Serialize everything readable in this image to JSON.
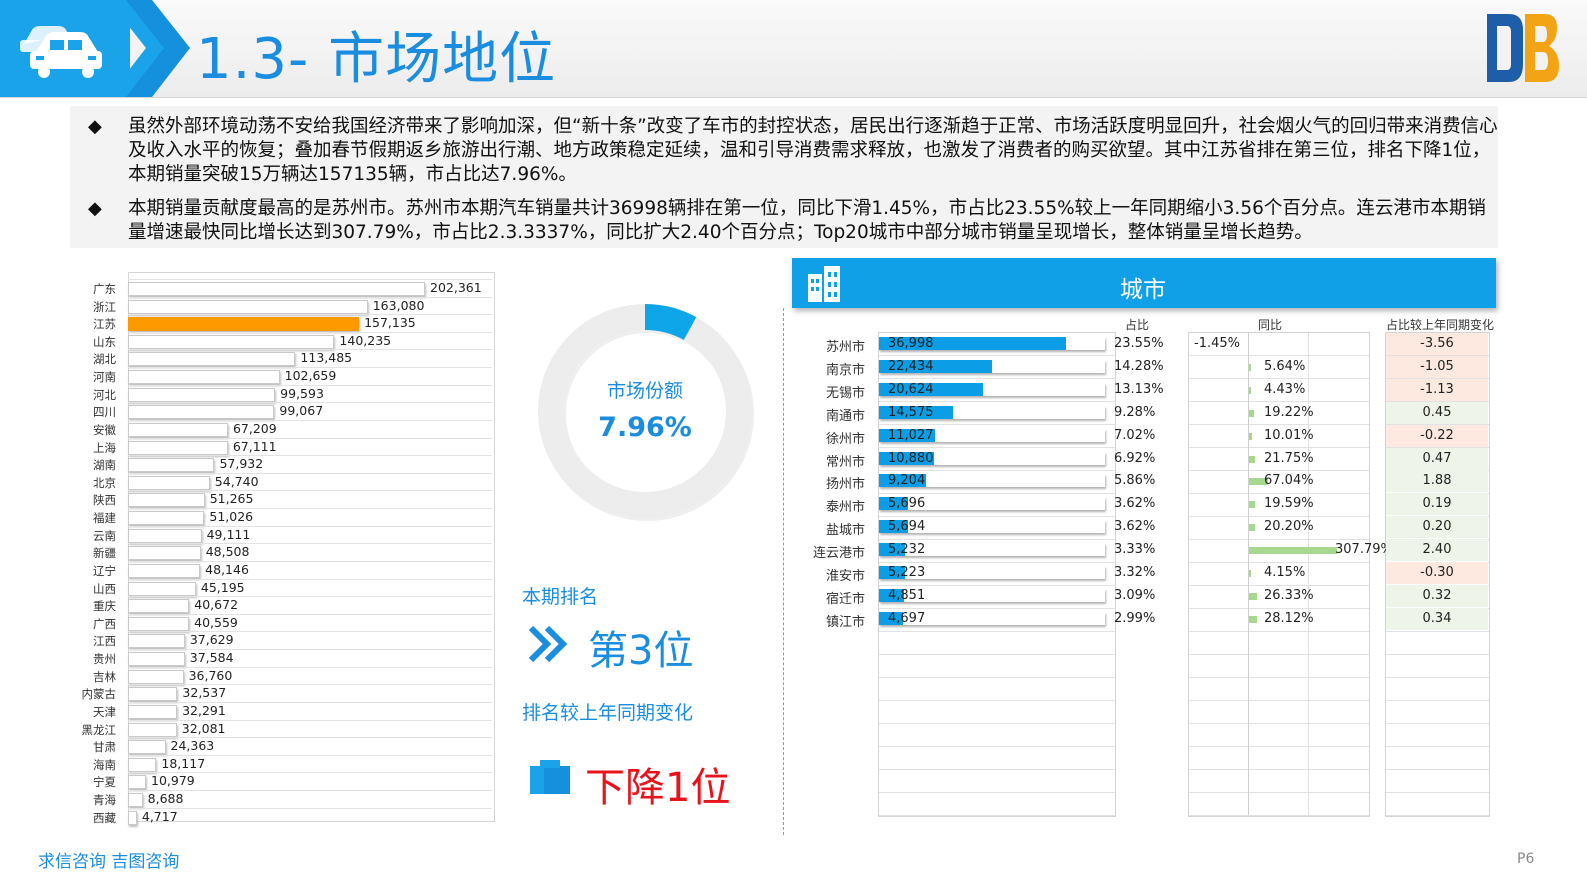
{
  "header": {
    "title": "1.3- 市场地位"
  },
  "bullets": [
    {
      "text": "虽然外部环境动荡不安给我国经济带来了影响加深，但“新十条”改变了车市的封控状态，居民出行逐渐趋于正常、市场活跃度明显回升，社会烟火气的回归带来消费信心及收入水平的恢复；叠加春节假期返乡旅游出行潮、地方政策稳定延续，温和引导消费需求释放，也激发了消费者的购买欲望。其中江苏省排在第三位，排名下降1位，本期销量突破15万辆达157135辆，市占比达7.96%。"
    },
    {
      "text": "本期销量贡献度最高的是苏州市。苏州市本期汽车销量共计36998辆排在第一位，同比下滑1.45%，市占比23.55%较上一年同期缩小3.56个百分点。连云港市本期销量增速最快同比增长达到307.79%，市占比2.3.3337%，同比扩大2.40个百分点；Top20城市中部分城市销量呈现增长，整体销量呈增长趋势。"
    }
  ],
  "chart_data": [
    {
      "type": "bar",
      "orientation": "horizontal",
      "highlight_category": "江苏",
      "highlight_color": "#ff9900",
      "categories": [
        "广东",
        "浙江",
        "江苏",
        "山东",
        "湖北",
        "河南",
        "河北",
        "四川",
        "安徽",
        "上海",
        "湖南",
        "北京",
        "陕西",
        "福建",
        "云南",
        "新疆",
        "辽宁",
        "山西",
        "重庆",
        "广西",
        "江西",
        "贵州",
        "吉林",
        "内蒙古",
        "天津",
        "黑龙江",
        "甘肃",
        "海南",
        "宁夏",
        "青海",
        "西藏"
      ],
      "values": [
        202361,
        163080,
        157135,
        140235,
        113485,
        102659,
        99593,
        99067,
        67209,
        67111,
        57932,
        54740,
        51265,
        51026,
        49111,
        48508,
        48146,
        45195,
        40672,
        40559,
        37629,
        37584,
        36760,
        32537,
        32291,
        32081,
        24363,
        18117,
        10979,
        8688,
        4717
      ],
      "value_labels": [
        "202,361",
        "163,080",
        "157,135",
        "140,235",
        "113,485",
        "102,659",
        "99,593",
        "99,067",
        "67,209",
        "67,111",
        "57,932",
        "54,740",
        "51,265",
        "51,026",
        "49,111",
        "48,508",
        "48,146",
        "45,195",
        "40,672",
        "40,559",
        "37,629",
        "37,584",
        "36,760",
        "32,537",
        "32,291",
        "32,081",
        "24,363",
        "18,117",
        "10,979",
        "8,688",
        "4,717"
      ]
    },
    {
      "type": "pie",
      "style": "donut",
      "slices": [
        {
          "value": 7.96,
          "color": "#0ea5e9"
        },
        {
          "value": 92.04,
          "color": "#ededed"
        }
      ]
    },
    {
      "type": "table",
      "columns": [
        "占比",
        "同比",
        "占比较上年同期变化"
      ],
      "rows": [
        {
          "city": "苏州市",
          "sales": 36998,
          "sales_label": "36,998",
          "share": "23.55%",
          "yoy": -1.45,
          "yoy_label": "-1.45%",
          "change": -3.56,
          "change_label": "-3.56"
        },
        {
          "city": "南京市",
          "sales": 22434,
          "sales_label": "22,434",
          "share": "14.28%",
          "yoy": 5.64,
          "yoy_label": "5.64%",
          "change": -1.05,
          "change_label": "-1.05"
        },
        {
          "city": "无锡市",
          "sales": 20624,
          "sales_label": "20,624",
          "share": "13.13%",
          "yoy": 4.43,
          "yoy_label": "4.43%",
          "change": -1.13,
          "change_label": "-1.13"
        },
        {
          "city": "南通市",
          "sales": 14575,
          "sales_label": "14,575",
          "share": "9.28%",
          "yoy": 19.22,
          "yoy_label": "19.22%",
          "change": 0.45,
          "change_label": "0.45"
        },
        {
          "city": "徐州市",
          "sales": 11027,
          "sales_label": "11,027",
          "share": "7.02%",
          "yoy": 10.01,
          "yoy_label": "10.01%",
          "change": -0.22,
          "change_label": "-0.22"
        },
        {
          "city": "常州市",
          "sales": 10880,
          "sales_label": "10,880",
          "share": "6.92%",
          "yoy": 21.75,
          "yoy_label": "21.75%",
          "change": 0.47,
          "change_label": "0.47"
        },
        {
          "city": "扬州市",
          "sales": 9204,
          "sales_label": "9,204",
          "share": "5.86%",
          "yoy": 67.04,
          "yoy_label": "67.04%",
          "change": 1.88,
          "change_label": "1.88"
        },
        {
          "city": "泰州市",
          "sales": 5696,
          "sales_label": "5,696",
          "share": "3.62%",
          "yoy": 19.59,
          "yoy_label": "19.59%",
          "change": 0.19,
          "change_label": "0.19"
        },
        {
          "city": "盐城市",
          "sales": 5694,
          "sales_label": "5,694",
          "share": "3.62%",
          "yoy": 20.2,
          "yoy_label": "20.20%",
          "change": 0.2,
          "change_label": "0.20"
        },
        {
          "city": "连云港市",
          "sales": 5232,
          "sales_label": "5,232",
          "share": "3.33%",
          "yoy": 307.79,
          "yoy_label": "307.79%",
          "change": 2.4,
          "change_label": "2.40"
        },
        {
          "city": "淮安市",
          "sales": 5223,
          "sales_label": "5,223",
          "share": "3.32%",
          "yoy": 4.15,
          "yoy_label": "4.15%",
          "change": -0.3,
          "change_label": "-0.30"
        },
        {
          "city": "宿迁市",
          "sales": 4851,
          "sales_label": "4,851",
          "share": "3.09%",
          "yoy": 26.33,
          "yoy_label": "26.33%",
          "change": 0.32,
          "change_label": "0.32"
        },
        {
          "city": "镇江市",
          "sales": 4697,
          "sales_label": "4,697",
          "share": "2.99%",
          "yoy": 28.12,
          "yoy_label": "28.12%",
          "change": 0.34,
          "change_label": "0.34"
        }
      ],
      "colors": {
        "bar": "#0b9ee6",
        "yoy_bar": "#a8d88e",
        "change_negative_bg": "#fde9e0",
        "change_positive_bg": "#eef5e8"
      }
    }
  ],
  "kpi": {
    "title": "市场份额",
    "value": "7.96%"
  },
  "ranking": {
    "label": "本期排名",
    "value": "第3位",
    "change_label": "排名较上年同期变化",
    "change_value": "下降1位"
  },
  "city_panel": {
    "title": "城市",
    "columns": [
      "占比",
      "同比",
      "占比较上年同期变化"
    ]
  },
  "footer": {
    "org": "求信咨询  吉图咨询",
    "page": "P6"
  },
  "icons": {
    "header": "car-icon",
    "chevrons": "chevron-right-icon",
    "city": "building-icon",
    "logo": "db-logo-icon",
    "rank": "double-chevron-icon",
    "change": "bar-block-icon"
  }
}
